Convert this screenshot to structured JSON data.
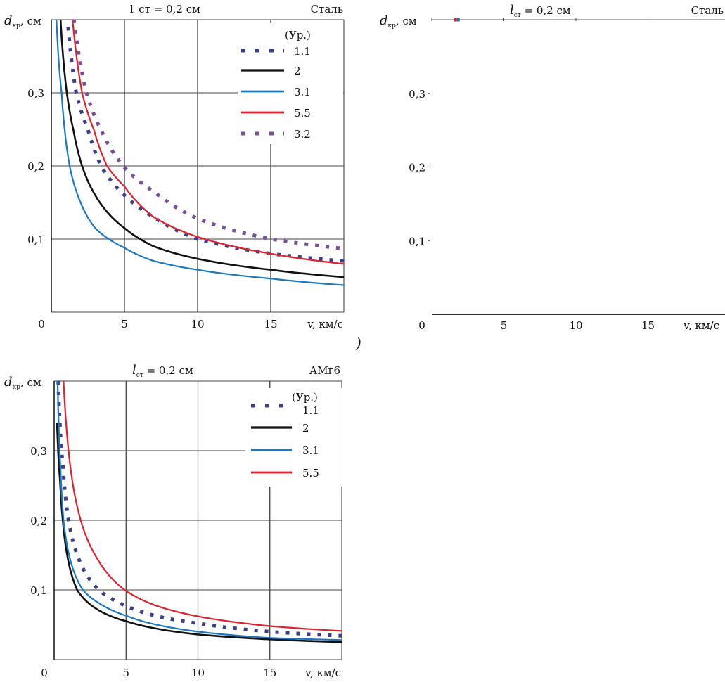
{
  "chart_data": [
    {
      "type": "line",
      "id": "steel-full",
      "title": "l_ст = 0,2 см",
      "title_main": "l",
      "title_sub": "ст",
      "title_rest": " = 0,2 см",
      "material": "Сталь",
      "ylabel_main": "d",
      "ylabel_sub": "кр",
      "ylabel_rest": ", см",
      "xlabel": "v, км/с",
      "xlim": [
        0,
        20
      ],
      "ylim": [
        0,
        0.4
      ],
      "xticks": [
        0,
        5,
        10,
        15
      ],
      "xtick_labels": [
        "0",
        "5",
        "10",
        "15"
      ],
      "yticks": [
        0.1,
        0.2,
        0.3
      ],
      "ytick_labels": [
        "0,1",
        "0,2",
        "0,3"
      ],
      "grid": true,
      "legend_title": "(Ур.)",
      "legend_position": "top-right",
      "series": [
        {
          "name": "1.1",
          "color": "#3b3f8f",
          "style": "dotted",
          "points": [
            [
              1.15,
              0.39
            ],
            [
              1.7,
              0.3
            ],
            [
              2.5,
              0.25
            ],
            [
              3.4,
              0.2
            ],
            [
              5,
              0.16
            ],
            [
              7,
              0.13
            ],
            [
              10,
              0.1
            ],
            [
              15,
              0.08
            ],
            [
              20,
              0.07
            ]
          ]
        },
        {
          "name": "2",
          "color": "#111111",
          "style": "solid",
          "points": [
            [
              0.63,
              0.4
            ],
            [
              1.06,
              0.3
            ],
            [
              1.5,
              0.25
            ],
            [
              2.1,
              0.2
            ],
            [
              3,
              0.16
            ],
            [
              5,
              0.115
            ],
            [
              7,
              0.09
            ],
            [
              10,
              0.073
            ],
            [
              15,
              0.058
            ],
            [
              20,
              0.048
            ]
          ]
        },
        {
          "name": "3.1",
          "color": "#1a78c2",
          "style": "solid",
          "points": [
            [
              0.35,
              0.4
            ],
            [
              0.7,
              0.3
            ],
            [
              1.25,
              0.2
            ],
            [
              2,
              0.15
            ],
            [
              3,
              0.115
            ],
            [
              5,
              0.088
            ],
            [
              7,
              0.07
            ],
            [
              10,
              0.058
            ],
            [
              15,
              0.046
            ],
            [
              20,
              0.037
            ]
          ]
        },
        {
          "name": "5.5",
          "color": "#e0202c",
          "style": "solid",
          "points": [
            [
              1.45,
              0.4
            ],
            [
              2.1,
              0.3
            ],
            [
              2.9,
              0.25
            ],
            [
              3.8,
              0.2
            ],
            [
              5,
              0.172
            ],
            [
              7,
              0.13
            ],
            [
              10,
              0.103
            ],
            [
              15,
              0.08
            ],
            [
              20,
              0.066
            ]
          ]
        },
        {
          "name": "3.2",
          "color": "#7a4f9a",
          "style": "dotted",
          "points": [
            [
              1.55,
              0.4
            ],
            [
              2.4,
              0.3
            ],
            [
              3.5,
              0.245
            ],
            [
              4.9,
              0.2
            ],
            [
              7,
              0.165
            ],
            [
              10,
              0.128
            ],
            [
              15,
              0.1
            ],
            [
              20,
              0.087
            ]
          ]
        }
      ]
    },
    {
      "type": "line",
      "id": "steel-empty",
      "title_main": "l",
      "title_sub": "ст",
      "title_rest": " = 0,2 см",
      "material": "Сталь",
      "ylabel_main": "d",
      "ylabel_sub": "кр",
      "ylabel_rest": ", см",
      "xlabel": "v, км/с",
      "xlim": [
        0,
        20
      ],
      "ylim": [
        0,
        0.4
      ],
      "xticks": [
        0,
        5,
        10,
        15
      ],
      "xtick_labels": [
        "0",
        "5",
        "10",
        "15"
      ],
      "yticks": [
        0.1,
        0.2,
        0.3
      ],
      "ytick_labels": [
        "0,1",
        "0,2",
        "0,3"
      ],
      "grid": false,
      "series": []
    },
    {
      "type": "line",
      "id": "amg6",
      "title_main": "l",
      "title_sub": "ст",
      "title_rest": " = 0,2 см",
      "material": "АМг6",
      "ylabel_main": "d",
      "ylabel_sub": "кр",
      "ylabel_rest": ", см",
      "xlabel": "v, км/с",
      "xlim": [
        0,
        20
      ],
      "ylim": [
        0,
        0.4
      ],
      "xticks": [
        0,
        5,
        10,
        15
      ],
      "xtick_labels": [
        "0",
        "5",
        "10",
        "15"
      ],
      "yticks": [
        0.1,
        0.2,
        0.3
      ],
      "ytick_labels": [
        "0,1",
        "0,2",
        "0,3"
      ],
      "grid": true,
      "legend_title": "(Ур.)",
      "legend_position": "top-right",
      "series": [
        {
          "name": "1.1",
          "color": "#3b3f8f",
          "style": "dotted",
          "points": [
            [
              0.28,
              0.4
            ],
            [
              0.6,
              0.28
            ],
            [
              1.0,
              0.2
            ],
            [
              1.8,
              0.14
            ],
            [
              3.1,
              0.1
            ],
            [
              5,
              0.077
            ],
            [
              7,
              0.063
            ],
            [
              10,
              0.052
            ],
            [
              15,
              0.04
            ],
            [
              20,
              0.034
            ]
          ]
        },
        {
          "name": "2",
          "color": "#111111",
          "style": "solid",
          "points": [
            [
              0.2,
              0.34
            ],
            [
              0.4,
              0.26
            ],
            [
              0.6,
              0.2
            ],
            [
              1.0,
              0.14
            ],
            [
              1.6,
              0.1
            ],
            [
              3,
              0.072
            ],
            [
              5,
              0.055
            ],
            [
              10,
              0.036
            ],
            [
              15,
              0.029
            ],
            [
              20,
              0.025
            ]
          ]
        },
        {
          "name": "3.1",
          "color": "#1a78c2",
          "style": "solid",
          "points": [
            [
              0.24,
              0.4
            ],
            [
              0.45,
              0.27
            ],
            [
              0.65,
              0.2
            ],
            [
              1.1,
              0.145
            ],
            [
              2.0,
              0.1
            ],
            [
              3.2,
              0.08
            ],
            [
              5,
              0.063
            ],
            [
              10,
              0.04
            ],
            [
              15,
              0.031
            ],
            [
              20,
              0.028
            ]
          ]
        },
        {
          "name": "5.5",
          "color": "#e0202c",
          "style": "solid",
          "points": [
            [
              0.65,
              0.4
            ],
            [
              1.0,
              0.3
            ],
            [
              1.4,
              0.24
            ],
            [
              1.85,
              0.2
            ],
            [
              3,
              0.145
            ],
            [
              4.9,
              0.1
            ],
            [
              7,
              0.078
            ],
            [
              10,
              0.062
            ],
            [
              15,
              0.048
            ],
            [
              20,
              0.041
            ]
          ]
        }
      ]
    }
  ],
  "fragments": {
    "panel_label": ")"
  }
}
